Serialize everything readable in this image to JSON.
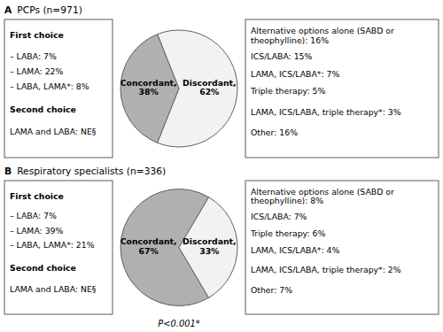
{
  "chart_data": [
    {
      "type": "pie",
      "title": "A",
      "subtitle": "PCPs (n=971)",
      "categories": [
        "Concordant,",
        "Discordant,"
      ],
      "values": [
        38,
        62
      ],
      "value_labels": [
        "38%",
        "62%"
      ],
      "colors": [
        "#b0b0b0",
        "#f2f2f2"
      ],
      "data_labels": true,
      "annotations": {
        "left": [
          {
            "text": "First choice",
            "bold": true
          },
          {
            "text": "– LABA: 7%",
            "bold": false
          },
          {
            "text": "– LAMA: 22%",
            "bold": false
          },
          {
            "text": "– LABA, LAMA*: 8%",
            "bold": false
          },
          {
            "text": "Second choice",
            "bold": true
          },
          {
            "text": "LAMA and LABA: NE§",
            "bold": false
          }
        ],
        "right": [
          "Alternative options alone (SABD or\ntheophylline): 16%",
          "ICS/LABA: 15%",
          "LAMA, ICS/LABA*: 7%",
          "Triple therapy: 5%",
          "LAMA, ICS/LABA, triple therapy*: 3%",
          "Other: 16%"
        ]
      }
    },
    {
      "type": "pie",
      "title": "B",
      "subtitle": "Respiratory specialists (n=336)",
      "categories": [
        "Concordant,",
        "Discordant,"
      ],
      "values": [
        67,
        33
      ],
      "value_labels": [
        "67%",
        "33%"
      ],
      "colors": [
        "#b0b0b0",
        "#f2f2f2"
      ],
      "data_labels": true,
      "annotations": {
        "left": [
          {
            "text": "First choice",
            "bold": true
          },
          {
            "text": "– LABA: 7%",
            "bold": false
          },
          {
            "text": "– LAMA: 39%",
            "bold": false
          },
          {
            "text": "– LABA, LAMA*: 21%",
            "bold": false
          },
          {
            "text": "Second choice",
            "bold": true
          },
          {
            "text": "LAMA and LABA: NE§",
            "bold": false
          }
        ],
        "right": [
          "Alternative options alone (SABD or\ntheophylline): 8%",
          "ICS/LABA: 7%",
          "Triple therapy: 6%",
          "LAMA, ICS/LABA*: 4%",
          "LAMA, ICS/LABA, triple therapy*: 2%",
          "Other: 7%"
        ]
      },
      "footnote": "P<0.001*"
    }
  ]
}
